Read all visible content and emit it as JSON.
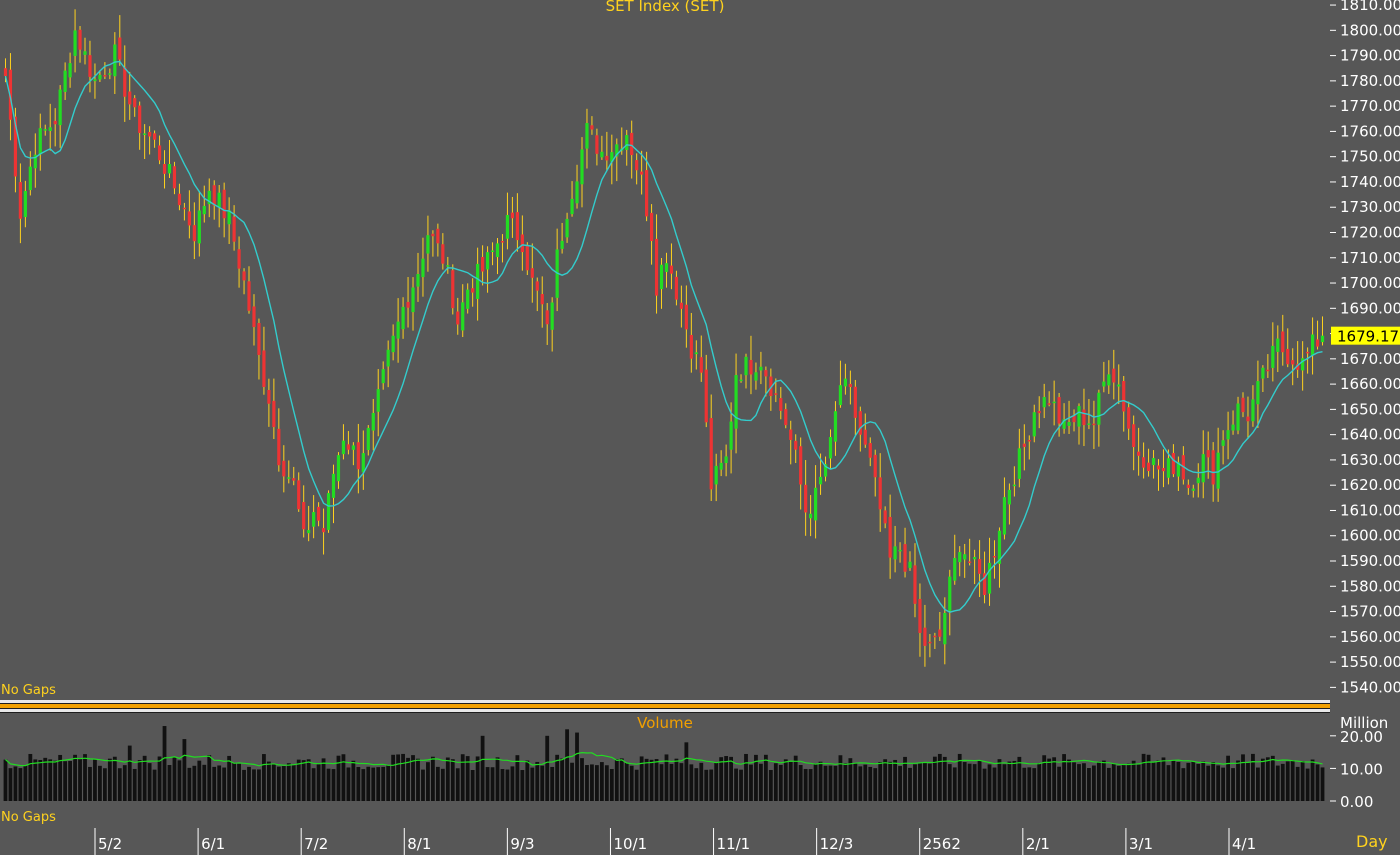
{
  "title": "SET Index (SET)",
  "volume_title": "Volume",
  "no_gaps_label": "No Gaps",
  "volume_unit": "Million",
  "period_label": "Day",
  "colors": {
    "background": "#575757",
    "up_candle": "#22dd22",
    "down_candle": "#ee3333",
    "wick": "#ffd21e",
    "moving_average": "#33cccc",
    "volume_bar": "#111111",
    "volume_average": "#22dd22",
    "last_price_tag": "#ffff00",
    "title_text": "#ffd21e"
  },
  "chart_data": [
    {
      "type": "candlestick",
      "title": "SET Index (SET)",
      "ylim": [
        1535,
        1812
      ],
      "price_ticks": [
        1540,
        1550,
        1560,
        1570,
        1580,
        1590,
        1600,
        1610,
        1620,
        1630,
        1640,
        1650,
        1660,
        1670,
        1680,
        1690,
        1700,
        1710,
        1720,
        1730,
        1740,
        1750,
        1760,
        1770,
        1780,
        1790,
        1800,
        1810
      ],
      "last_price": 1679.17,
      "last_price_label": "1679.17",
      "x_ticks": [
        "5/2",
        "6/1",
        "7/2",
        "8/1",
        "9/3",
        "10/1",
        "11/1",
        "12/3",
        "2562",
        "2/1",
        "3/1",
        "4/1"
      ],
      "close_anchors": [
        [
          0,
          1782
        ],
        [
          3,
          1728
        ],
        [
          6,
          1755
        ],
        [
          10,
          1765
        ],
        [
          14,
          1800
        ],
        [
          18,
          1780
        ],
        [
          22,
          1790
        ],
        [
          26,
          1765
        ],
        [
          30,
          1755
        ],
        [
          34,
          1738
        ],
        [
          38,
          1720
        ],
        [
          41,
          1738
        ],
        [
          45,
          1725
        ],
        [
          48,
          1700
        ],
        [
          50,
          1680
        ],
        [
          51,
          1670
        ],
        [
          53,
          1655
        ],
        [
          55,
          1632
        ],
        [
          58,
          1620
        ],
        [
          60,
          1598
        ],
        [
          62,
          1610
        ],
        [
          64,
          1602
        ],
        [
          66,
          1625
        ],
        [
          68,
          1640
        ],
        [
          71,
          1630
        ],
        [
          74,
          1645
        ],
        [
          77,
          1670
        ],
        [
          80,
          1690
        ],
        [
          83,
          1705
        ],
        [
          85,
          1720
        ],
        [
          88,
          1710
        ],
        [
          90,
          1695
        ],
        [
          91,
          1685
        ],
        [
          93,
          1698
        ],
        [
          96,
          1705
        ],
        [
          98,
          1712
        ],
        [
          101,
          1724
        ],
        [
          104,
          1717
        ],
        [
          106,
          1700
        ],
        [
          108,
          1690
        ],
        [
          109,
          1680
        ],
        [
          111,
          1710
        ],
        [
          113,
          1730
        ],
        [
          115,
          1745
        ],
        [
          117,
          1760
        ],
        [
          120,
          1752
        ],
        [
          123,
          1755
        ],
        [
          125,
          1760
        ],
        [
          128,
          1740
        ],
        [
          130,
          1720
        ],
        [
          131,
          1700
        ],
        [
          133,
          1712
        ],
        [
          136,
          1690
        ],
        [
          138,
          1675
        ],
        [
          140,
          1665
        ],
        [
          142,
          1620
        ],
        [
          145,
          1630
        ],
        [
          147,
          1665
        ],
        [
          150,
          1668
        ],
        [
          152,
          1670
        ],
        [
          154,
          1660
        ],
        [
          157,
          1645
        ],
        [
          159,
          1630
        ],
        [
          161,
          1610
        ],
        [
          163,
          1615
        ],
        [
          166,
          1635
        ],
        [
          168,
          1660
        ],
        [
          170,
          1655
        ],
        [
          172,
          1640
        ],
        [
          174,
          1628
        ],
        [
          176,
          1610
        ],
        [
          178,
          1590
        ],
        [
          180,
          1595
        ],
        [
          182,
          1585
        ],
        [
          184,
          1560
        ],
        [
          186,
          1555
        ],
        [
          188,
          1560
        ],
        [
          190,
          1580
        ],
        [
          192,
          1598
        ],
        [
          194,
          1590
        ],
        [
          197,
          1580
        ],
        [
          199,
          1595
        ],
        [
          201,
          1615
        ],
        [
          203,
          1625
        ],
        [
          205,
          1635
        ],
        [
          207,
          1650
        ],
        [
          210,
          1655
        ],
        [
          213,
          1642
        ],
        [
          216,
          1648
        ],
        [
          219,
          1645
        ],
        [
          222,
          1668
        ],
        [
          224,
          1660
        ],
        [
          227,
          1635
        ],
        [
          230,
          1630
        ],
        [
          233,
          1625
        ],
        [
          236,
          1630
        ],
        [
          238,
          1620
        ],
        [
          241,
          1630
        ],
        [
          243,
          1625
        ],
        [
          245,
          1640
        ],
        [
          248,
          1650
        ],
        [
          250,
          1648
        ],
        [
          253,
          1662
        ],
        [
          256,
          1675
        ],
        [
          258,
          1672
        ],
        [
          261,
          1668
        ],
        [
          263,
          1675
        ],
        [
          265,
          1679.17
        ]
      ]
    },
    {
      "type": "bar",
      "title": "Volume",
      "unit": "Million",
      "ylim": [
        0,
        27
      ],
      "ticks": [
        0,
        10,
        20
      ],
      "tick_labels": [
        "0.00",
        "10.00",
        "20.00"
      ],
      "base_level": 12,
      "spikes": [
        [
          25,
          17
        ],
        [
          32,
          23
        ],
        [
          36,
          19
        ],
        [
          96,
          20
        ],
        [
          109,
          20
        ],
        [
          113,
          22
        ],
        [
          115,
          21
        ],
        [
          137,
          18
        ]
      ]
    }
  ]
}
